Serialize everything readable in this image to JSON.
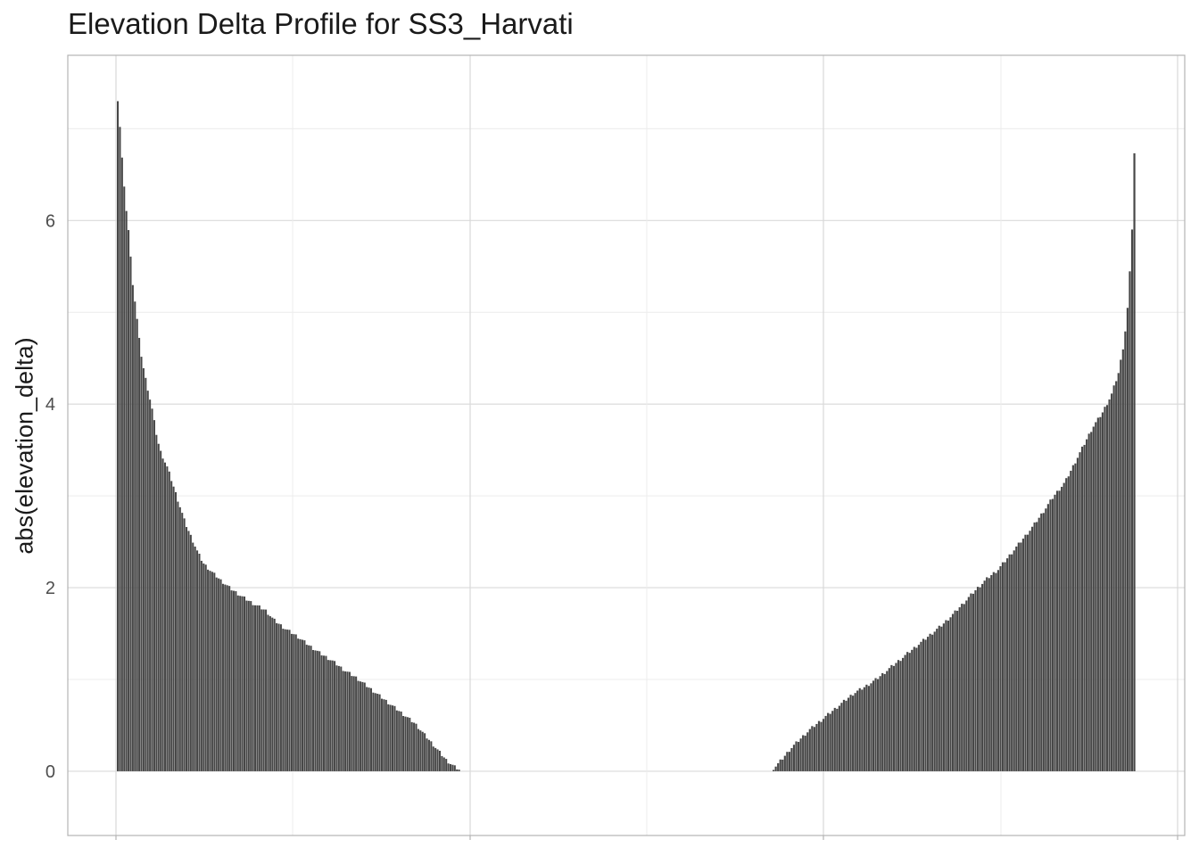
{
  "chart_data": {
    "type": "bar",
    "title": "Elevation Delta Profile for SS3_Harvati",
    "xlabel": "",
    "ylabel": "abs(elevation_delta)",
    "ylim": [
      -0.7,
      7.8
    ],
    "y_ticks": [
      0,
      2,
      4,
      6
    ],
    "x_ticks": [
      "",
      "",
      "",
      "",
      "",
      "",
      ""
    ],
    "grid": true,
    "bar_color": "#474747",
    "panel_border_color": "#b3b3b3",
    "grid_major_color": "#d9d9d9",
    "grid_minor_color": "#ececec",
    "left_group": {
      "bar_count": 160,
      "profile": [
        [
          0,
          7.4
        ],
        [
          1,
          7.25
        ],
        [
          2,
          6.9
        ],
        [
          4,
          6.3
        ],
        [
          6,
          5.9
        ],
        [
          8,
          5.35
        ],
        [
          10,
          5.0
        ],
        [
          12,
          4.6
        ],
        [
          14,
          4.35
        ],
        [
          16,
          4.15
        ],
        [
          18,
          3.95
        ],
        [
          20,
          3.7
        ],
        [
          22,
          3.5
        ],
        [
          26,
          3.3
        ],
        [
          29,
          3.1
        ],
        [
          32,
          2.9
        ],
        [
          35,
          2.7
        ],
        [
          38,
          2.55
        ],
        [
          41,
          2.4
        ],
        [
          44,
          2.27
        ],
        [
          48,
          2.18
        ],
        [
          53,
          2.08
        ],
        [
          58,
          1.99
        ],
        [
          64,
          1.9
        ],
        [
          70,
          1.82
        ],
        [
          76,
          1.75
        ],
        [
          80,
          1.65
        ],
        [
          86,
          1.55
        ],
        [
          92,
          1.47
        ],
        [
          98,
          1.37
        ],
        [
          104,
          1.28
        ],
        [
          110,
          1.2
        ],
        [
          116,
          1.1
        ],
        [
          122,
          1.02
        ],
        [
          128,
          0.92
        ],
        [
          134,
          0.82
        ],
        [
          140,
          0.72
        ],
        [
          146,
          0.62
        ],
        [
          152,
          0.52
        ],
        [
          156,
          0.42
        ],
        [
          160,
          0.32
        ],
        [
          164,
          0.22
        ],
        [
          168,
          0.12
        ],
        [
          172,
          0.05
        ],
        [
          175,
          0.01
        ]
      ]
    },
    "right_group": {
      "bar_count": 160,
      "profile": [
        [
          0,
          0.02
        ],
        [
          3,
          0.08
        ],
        [
          6,
          0.15
        ],
        [
          10,
          0.25
        ],
        [
          15,
          0.35
        ],
        [
          20,
          0.45
        ],
        [
          26,
          0.55
        ],
        [
          32,
          0.65
        ],
        [
          38,
          0.75
        ],
        [
          44,
          0.85
        ],
        [
          50,
          0.92
        ],
        [
          56,
          1.0
        ],
        [
          62,
          1.1
        ],
        [
          68,
          1.2
        ],
        [
          74,
          1.3
        ],
        [
          80,
          1.4
        ],
        [
          86,
          1.5
        ],
        [
          92,
          1.6
        ],
        [
          98,
          1.72
        ],
        [
          104,
          1.85
        ],
        [
          110,
          1.98
        ],
        [
          116,
          2.1
        ],
        [
          122,
          2.2
        ],
        [
          128,
          2.35
        ],
        [
          134,
          2.5
        ],
        [
          140,
          2.65
        ],
        [
          146,
          2.82
        ],
        [
          152,
          3.0
        ],
        [
          158,
          3.15
        ],
        [
          163,
          3.35
        ],
        [
          168,
          3.55
        ],
        [
          173,
          3.75
        ],
        [
          178,
          3.9
        ],
        [
          183,
          4.1
        ],
        [
          187,
          4.35
        ],
        [
          190,
          4.7
        ],
        [
          192,
          5.1
        ],
        [
          194,
          5.8
        ],
        [
          195,
          6.5
        ],
        [
          196,
          7.1
        ]
      ]
    }
  }
}
